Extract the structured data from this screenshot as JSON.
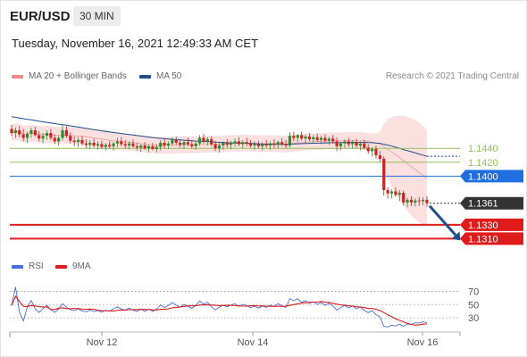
{
  "header": {
    "symbol": "EUR/USD",
    "timeframe": "30 MIN",
    "datetime": "Tuesday, November 16, 2021 12:49:33 AM CET",
    "credit": "Research © 2021 Trading Central"
  },
  "colors": {
    "candle_up": "#2e8b2e",
    "candle_down": "#cc2222",
    "bollinger_fill": "#fbdada",
    "bollinger_legend": "#f08a8a",
    "ma50": "#1f4e8c",
    "resistance": "#8fc45a",
    "pivot": "#1f6fe0",
    "support": "#e01b1b",
    "current_price_bg": "#333333",
    "rsi_line": "#4a6fdc",
    "rsi_ma": "#e01b1b",
    "arrow": "#1f4e8c"
  },
  "chart_data": [
    {
      "type": "candlestick",
      "legend": [
        {
          "name": "MA 20 + Bollinger Bands",
          "color": "#f08a8a"
        },
        {
          "name": "MA 50",
          "color": "#1f4e8c"
        }
      ],
      "x_ticks": [
        "Nov 12",
        "Nov 14",
        "Nov 16"
      ],
      "ylim": [
        1.129,
        1.1525
      ],
      "price_levels": [
        {
          "value": 1.144,
          "label": "1.1440",
          "kind": "resistance"
        },
        {
          "value": 1.142,
          "label": "1.1420",
          "kind": "resistance"
        },
        {
          "value": 1.14,
          "label": "1.1400",
          "kind": "pivot"
        },
        {
          "value": 1.133,
          "label": "1.1330",
          "kind": "support"
        },
        {
          "value": 1.131,
          "label": "1.1310",
          "kind": "support"
        }
      ],
      "current_price": {
        "value": 1.1361,
        "label": "1.1361"
      },
      "forecast_arrow": {
        "from": 1.1361,
        "to": 1.131
      },
      "candles": [
        [
          1.1468,
          1.1474,
          1.1458,
          1.1462
        ],
        [
          1.1462,
          1.147,
          1.1455,
          1.1466
        ],
        [
          1.1466,
          1.1472,
          1.1456,
          1.146
        ],
        [
          1.146,
          1.1468,
          1.145,
          1.1455
        ],
        [
          1.1455,
          1.1464,
          1.1448,
          1.1461
        ],
        [
          1.1461,
          1.147,
          1.1455,
          1.1466
        ],
        [
          1.1466,
          1.1471,
          1.1457,
          1.1459
        ],
        [
          1.1459,
          1.1465,
          1.145,
          1.1454
        ],
        [
          1.1454,
          1.1462,
          1.1447,
          1.1458
        ],
        [
          1.1458,
          1.1466,
          1.1452,
          1.1462
        ],
        [
          1.1462,
          1.1468,
          1.1452,
          1.1455
        ],
        [
          1.1455,
          1.146,
          1.1446,
          1.145
        ],
        [
          1.145,
          1.1458,
          1.1444,
          1.1455
        ],
        [
          1.1455,
          1.1474,
          1.1451,
          1.1466
        ],
        [
          1.1466,
          1.1472,
          1.1455,
          1.1458
        ],
        [
          1.1458,
          1.1463,
          1.1447,
          1.1451
        ],
        [
          1.1451,
          1.1457,
          1.1443,
          1.1449
        ],
        [
          1.1449,
          1.1456,
          1.1442,
          1.1452
        ],
        [
          1.1452,
          1.1458,
          1.1444,
          1.1447
        ],
        [
          1.1447,
          1.1453,
          1.144,
          1.1445
        ],
        [
          1.1445,
          1.1452,
          1.1439,
          1.1448
        ],
        [
          1.1448,
          1.1454,
          1.1441,
          1.1444
        ],
        [
          1.1444,
          1.145,
          1.1438,
          1.1446
        ],
        [
          1.1446,
          1.1451,
          1.1439,
          1.1442
        ],
        [
          1.1442,
          1.1448,
          1.1437,
          1.1445
        ],
        [
          1.1445,
          1.145,
          1.144,
          1.1443
        ],
        [
          1.1443,
          1.1449,
          1.1437,
          1.1447
        ],
        [
          1.1447,
          1.1455,
          1.1442,
          1.145
        ],
        [
          1.145,
          1.1456,
          1.1443,
          1.1446
        ],
        [
          1.1446,
          1.1452,
          1.144,
          1.1444
        ],
        [
          1.1444,
          1.145,
          1.1439,
          1.1447
        ],
        [
          1.1447,
          1.1453,
          1.1441,
          1.1443
        ],
        [
          1.1443,
          1.1448,
          1.1437,
          1.1441
        ],
        [
          1.1441,
          1.1447,
          1.1435,
          1.1444
        ],
        [
          1.1444,
          1.1449,
          1.1438,
          1.144
        ],
        [
          1.144,
          1.1446,
          1.1434,
          1.1443
        ],
        [
          1.1443,
          1.1448,
          1.1437,
          1.1439
        ],
        [
          1.1439,
          1.1446,
          1.1434,
          1.1442
        ],
        [
          1.1442,
          1.1452,
          1.1437,
          1.1448
        ],
        [
          1.1448,
          1.1454,
          1.144,
          1.1444
        ],
        [
          1.1444,
          1.145,
          1.1439,
          1.1447
        ],
        [
          1.1447,
          1.1456,
          1.1443,
          1.1452
        ],
        [
          1.1452,
          1.1457,
          1.1445,
          1.1448
        ],
        [
          1.1448,
          1.1453,
          1.1441,
          1.1445
        ],
        [
          1.1445,
          1.1451,
          1.1439,
          1.1449
        ],
        [
          1.1449,
          1.1455,
          1.1443,
          1.1446
        ],
        [
          1.1446,
          1.1452,
          1.144,
          1.1443
        ],
        [
          1.1443,
          1.1449,
          1.1438,
          1.1447
        ],
        [
          1.1447,
          1.1459,
          1.1444,
          1.1455
        ],
        [
          1.1455,
          1.1461,
          1.1447,
          1.145
        ],
        [
          1.145,
          1.1456,
          1.1444,
          1.1453
        ],
        [
          1.1453,
          1.1457,
          1.1443,
          1.1446
        ],
        [
          1.1446,
          1.1451,
          1.1436,
          1.144
        ],
        [
          1.144,
          1.1448,
          1.1434,
          1.1444
        ],
        [
          1.1444,
          1.145,
          1.1438,
          1.1448
        ],
        [
          1.1448,
          1.1453,
          1.1441,
          1.1445
        ],
        [
          1.1445,
          1.1451,
          1.1439,
          1.1448
        ],
        [
          1.1448,
          1.1454,
          1.1442,
          1.145
        ],
        [
          1.145,
          1.1456,
          1.1443,
          1.1446
        ],
        [
          1.1446,
          1.1452,
          1.144,
          1.1449
        ],
        [
          1.1449,
          1.1455,
          1.1443,
          1.1447
        ],
        [
          1.1447,
          1.1452,
          1.1441,
          1.1444
        ],
        [
          1.1444,
          1.145,
          1.1438,
          1.1446
        ],
        [
          1.1446,
          1.1451,
          1.144,
          1.1443
        ],
        [
          1.1443,
          1.1449,
          1.1437,
          1.1446
        ],
        [
          1.1446,
          1.1452,
          1.1441,
          1.1444
        ],
        [
          1.1444,
          1.145,
          1.1438,
          1.1447
        ],
        [
          1.1447,
          1.1453,
          1.1441,
          1.1445
        ],
        [
          1.1445,
          1.1451,
          1.144,
          1.1449
        ],
        [
          1.1449,
          1.1455,
          1.1443,
          1.1446
        ],
        [
          1.1446,
          1.1452,
          1.144,
          1.1444
        ],
        [
          1.1444,
          1.1463,
          1.1441,
          1.1458
        ],
        [
          1.1458,
          1.1464,
          1.145,
          1.1455
        ],
        [
          1.1455,
          1.1461,
          1.1449,
          1.1459
        ],
        [
          1.1459,
          1.1464,
          1.1451,
          1.1454
        ],
        [
          1.1454,
          1.146,
          1.1448,
          1.1457
        ],
        [
          1.1457,
          1.1462,
          1.145,
          1.1453
        ],
        [
          1.1453,
          1.1459,
          1.1447,
          1.1456
        ],
        [
          1.1456,
          1.1461,
          1.1449,
          1.1452
        ],
        [
          1.1452,
          1.1458,
          1.1446,
          1.1455
        ],
        [
          1.1455,
          1.146,
          1.1448,
          1.1451
        ],
        [
          1.1451,
          1.1457,
          1.1445,
          1.1454
        ],
        [
          1.1454,
          1.1459,
          1.1447,
          1.145
        ],
        [
          1.145,
          1.1456,
          1.1436,
          1.1443
        ],
        [
          1.1443,
          1.1449,
          1.1437,
          1.1447
        ],
        [
          1.1447,
          1.1453,
          1.1441,
          1.145
        ],
        [
          1.145,
          1.1455,
          1.1442,
          1.1446
        ],
        [
          1.1446,
          1.1452,
          1.144,
          1.1449
        ],
        [
          1.1449,
          1.1454,
          1.1441,
          1.1444
        ],
        [
          1.1444,
          1.145,
          1.1437,
          1.1447
        ],
        [
          1.1447,
          1.1452,
          1.1438,
          1.1441
        ],
        [
          1.1441,
          1.1446,
          1.1432,
          1.1436
        ],
        [
          1.1436,
          1.1442,
          1.1428,
          1.1439
        ],
        [
          1.1439,
          1.1444,
          1.1425,
          1.143
        ],
        [
          1.143,
          1.1436,
          1.142,
          1.1425
        ],
        [
          1.1425,
          1.1429,
          1.1372,
          1.138
        ],
        [
          1.138,
          1.1384,
          1.1368,
          1.1375
        ],
        [
          1.1375,
          1.1381,
          1.1368,
          1.1378
        ],
        [
          1.1378,
          1.1384,
          1.137,
          1.1373
        ],
        [
          1.1373,
          1.138,
          1.1364,
          1.1376
        ],
        [
          1.1376,
          1.1379,
          1.1358,
          1.1362
        ],
        [
          1.1362,
          1.1369,
          1.1355,
          1.1366
        ],
        [
          1.1366,
          1.1371,
          1.1357,
          1.1362
        ],
        [
          1.1362,
          1.1368,
          1.1356,
          1.1365
        ],
        [
          1.1365,
          1.137,
          1.1357,
          1.1364
        ],
        [
          1.1364,
          1.137,
          1.1358,
          1.1366
        ],
        [
          1.1366,
          1.1371,
          1.1356,
          1.1361
        ]
      ]
    },
    {
      "type": "line",
      "legend": [
        {
          "name": "RSI",
          "color": "#4a6fdc"
        },
        {
          "name": "9MA",
          "color": "#e01b1b"
        }
      ],
      "ylim": [
        10,
        80
      ],
      "y_ticks": [
        70,
        50,
        30
      ]
    }
  ]
}
